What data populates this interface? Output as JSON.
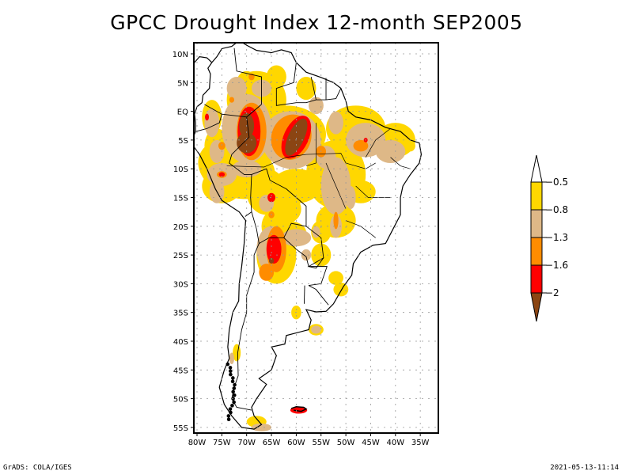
{
  "title": "GPCC Drought Index 12-month SEP2005",
  "footer": {
    "left": "GrADS: COLA/IGES",
    "right": "2021-05-13-11:14"
  },
  "map": {
    "region": "South America",
    "lon_range": [
      -81,
      -31
    ],
    "lat_range": [
      -56,
      12
    ],
    "x_ticks": [
      "80W",
      "75W",
      "70W",
      "65W",
      "60W",
      "55W",
      "50W",
      "45W",
      "40W",
      "35W"
    ],
    "x_tick_values": [
      -80,
      -75,
      -70,
      -65,
      -60,
      -55,
      -50,
      -45,
      -40,
      -35
    ],
    "y_ticks": [
      "10N",
      "5N",
      "EQ",
      "5S",
      "10S",
      "15S",
      "20S",
      "25S",
      "30S",
      "35S",
      "40S",
      "45S",
      "50S",
      "55S"
    ],
    "y_tick_values": [
      10,
      5,
      0,
      -5,
      -10,
      -15,
      -20,
      -25,
      -30,
      -35,
      -40,
      -45,
      -50,
      -55
    ],
    "grid": true
  },
  "legend": {
    "levels": [
      "-0.5",
      "-0.8",
      "-1.3",
      "-1.6",
      "-2"
    ],
    "colors": {
      "above": "#ffffff",
      "c1": "#ffd700",
      "c2": "#deb887",
      "c3": "#ff8c00",
      "c4": "#ff0000",
      "below": "#8b4513"
    },
    "bands": [
      {
        "label": "> -0.5",
        "color": "#ffffff"
      },
      {
        "label": "-0.5 to -0.8",
        "color": "#ffd700"
      },
      {
        "label": "-0.8 to -1.3",
        "color": "#deb887"
      },
      {
        "label": "-1.3 to -1.6",
        "color": "#ff8c00"
      },
      {
        "label": "-1.6 to -2",
        "color": "#ff0000"
      },
      {
        "label": "< -2",
        "color": "#8b4513"
      }
    ]
  },
  "drought_areas": [
    {
      "name": "western-amazon-core",
      "level": 5,
      "lon": -70,
      "lat": -4
    },
    {
      "name": "central-amazon-core",
      "level": 5,
      "lon": -60,
      "lat": -4
    },
    {
      "name": "northern-argentina",
      "level": 4,
      "lon": -64,
      "lat": -24
    },
    {
      "name": "falklands",
      "level": 4,
      "lon": -59,
      "lat": -52
    }
  ]
}
